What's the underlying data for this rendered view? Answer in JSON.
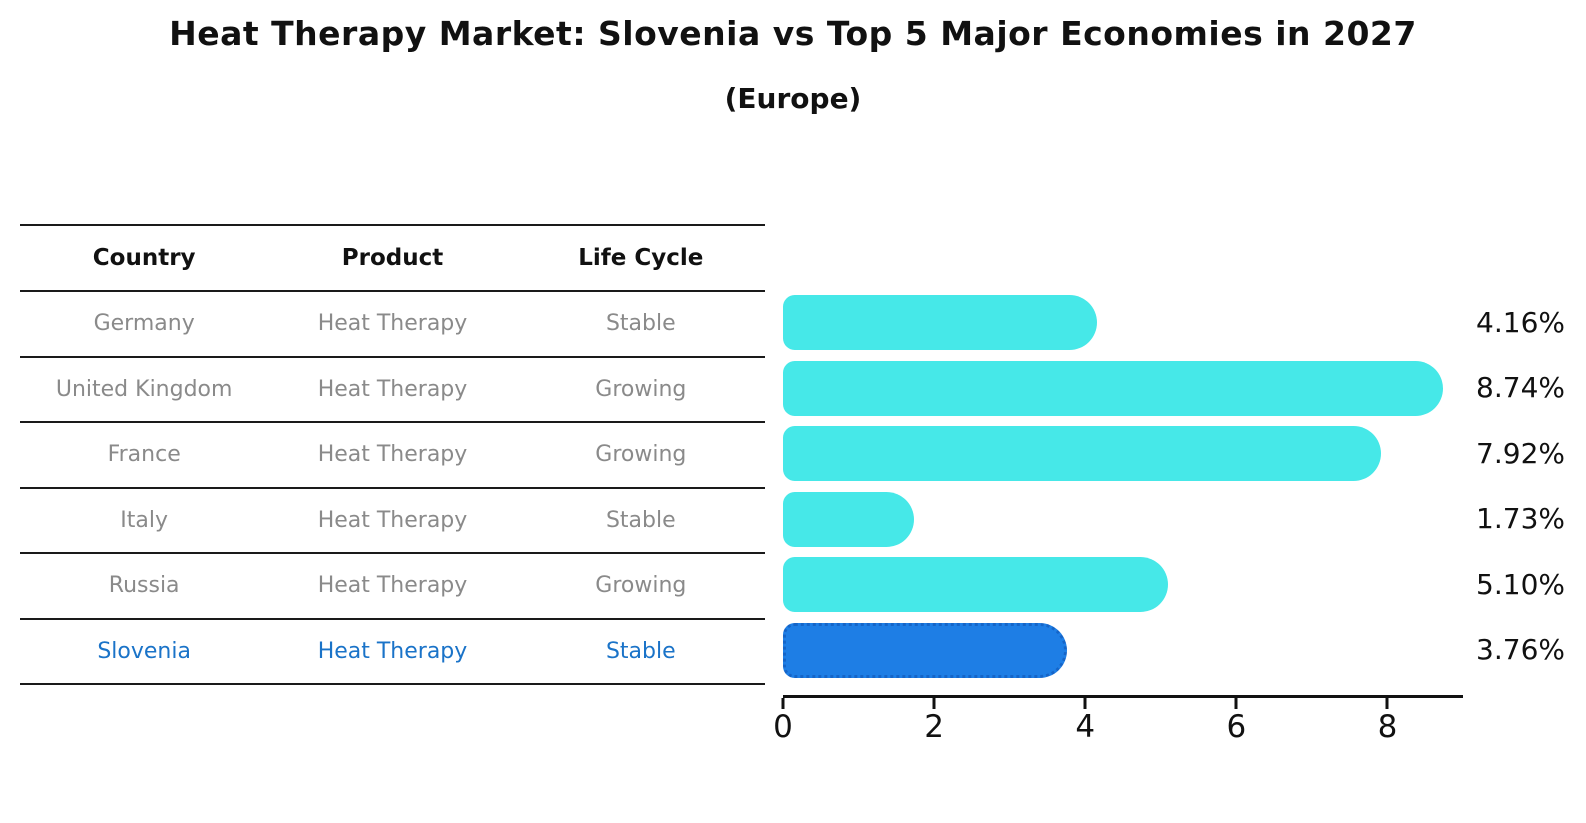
{
  "title": "Heat Therapy Market: Slovenia vs Top 5 Major Economies in 2027",
  "subtitle": "(Europe)",
  "table": {
    "headers": [
      "Country",
      "Product",
      "Life Cycle"
    ],
    "rows": [
      {
        "country": "Germany",
        "product": "Heat Therapy",
        "life_cycle": "Stable"
      },
      {
        "country": "United Kingdom",
        "product": "Heat Therapy",
        "life_cycle": "Growing"
      },
      {
        "country": "France",
        "product": "Heat Therapy",
        "life_cycle": "Growing"
      },
      {
        "country": "Italy",
        "product": "Heat Therapy",
        "life_cycle": "Stable"
      },
      {
        "country": "Russia",
        "product": "Heat Therapy",
        "life_cycle": "Growing"
      },
      {
        "country": "Slovenia",
        "product": "Heat Therapy",
        "life_cycle": "Stable"
      }
    ],
    "highlight_row": "Slovenia"
  },
  "chart_data": {
    "type": "bar",
    "orientation": "horizontal",
    "title": "Heat Therapy Market: Slovenia vs Top 5 Major Economies in 2027",
    "subtitle": "(Europe)",
    "categories": [
      "Germany",
      "United Kingdom",
      "France",
      "Italy",
      "Russia",
      "Slovenia"
    ],
    "values": [
      4.16,
      8.74,
      7.92,
      1.73,
      5.1,
      3.76
    ],
    "value_labels": [
      "4.16%",
      "8.74%",
      "7.92%",
      "1.73%",
      "5.10%",
      "3.76%"
    ],
    "xticks": [
      0,
      2,
      4,
      6,
      8
    ],
    "xlim": [
      0,
      9.0
    ],
    "xlabel": "",
    "ylabel": "",
    "grid": false,
    "legend": false,
    "highlight_index": 5
  },
  "colors": {
    "bar": "#46E8E8",
    "highlight_bar": "#1E7EE5",
    "highlight_border": "#1565C8",
    "highlight_text": "#1A73C8",
    "muted_text": "#8A8A8A",
    "text": "#111111"
  }
}
